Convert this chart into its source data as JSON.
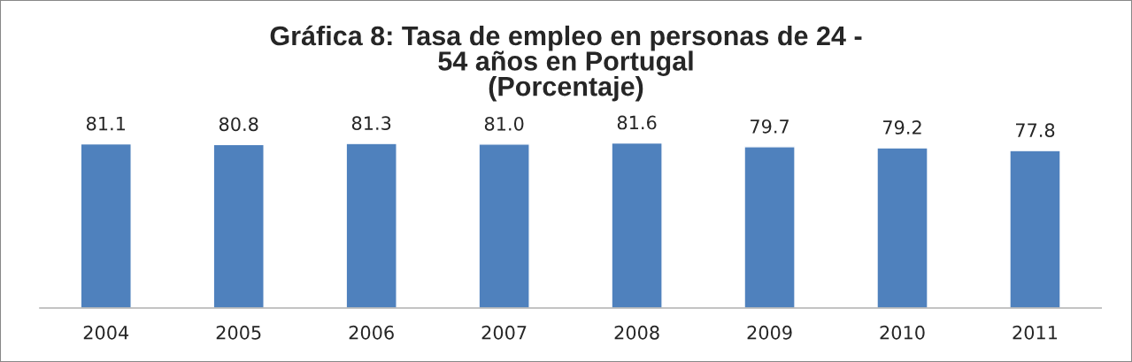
{
  "chart_data": {
    "type": "bar",
    "title": "Gráfica 8: Tasa de empleo en personas de 24 -\n54 años en Portugal\n(Porcentaje)",
    "categories": [
      "2004",
      "2005",
      "2006",
      "2007",
      "2008",
      "2009",
      "2010",
      "2011"
    ],
    "values": [
      81.1,
      80.8,
      81.3,
      81.0,
      81.6,
      79.7,
      79.2,
      77.8
    ],
    "value_labels": [
      "81.1",
      "80.8",
      "81.3",
      "81.0",
      "81.6",
      "79.7",
      "79.2",
      "77.8"
    ],
    "color": "#4f81bd",
    "grid": false,
    "tick_labels": "x"
  }
}
